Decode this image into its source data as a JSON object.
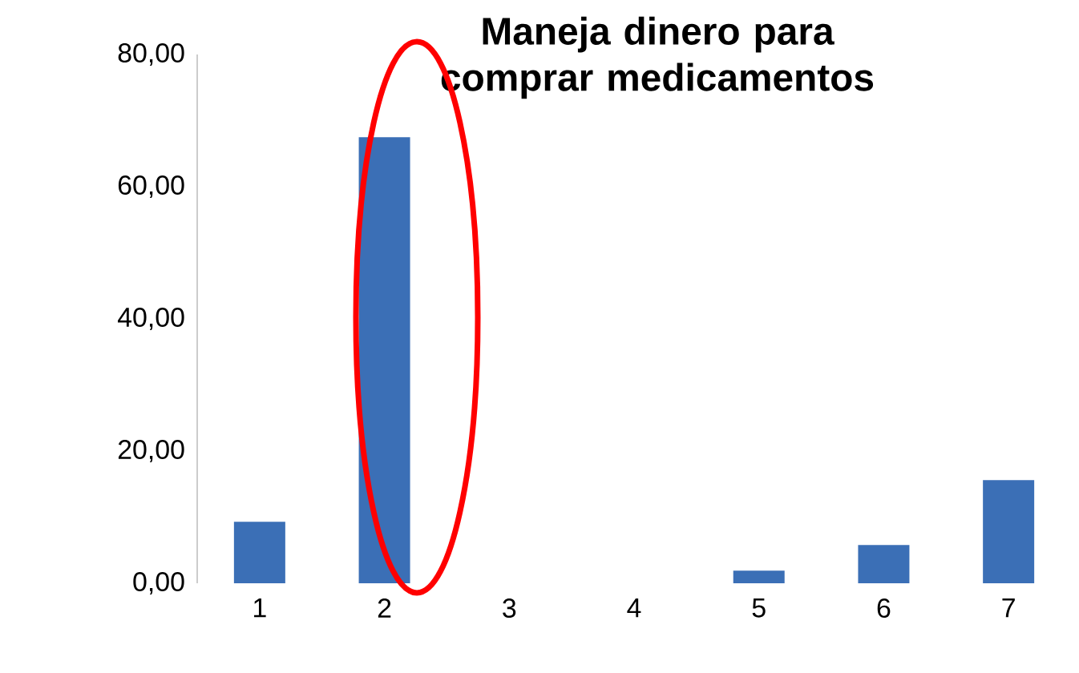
{
  "chart_data": {
    "type": "bar",
    "title": "Maneja dinero para comprar medicamentos",
    "categories": [
      "1",
      "2",
      "3",
      "4",
      "5",
      "6",
      "7"
    ],
    "values": [
      9.3,
      67.5,
      0,
      0,
      1.9,
      5.8,
      15.6
    ],
    "color": "#3b6fb6",
    "ylim": [
      0,
      80
    ],
    "yticks": [
      {
        "value": 0,
        "label": "0,00"
      },
      {
        "value": 20,
        "label": "20,00"
      },
      {
        "value": 40,
        "label": "40,00"
      },
      {
        "value": 60,
        "label": "60,00"
      },
      {
        "value": 80,
        "label": "80,00"
      }
    ],
    "grid": false
  }
}
